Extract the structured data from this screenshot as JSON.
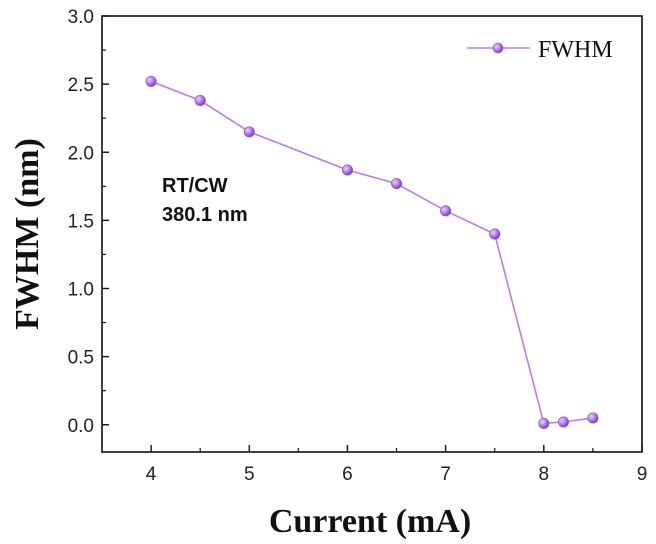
{
  "chart_data": {
    "type": "line",
    "xlabel": "Current (mA)",
    "ylabel": "FWHM (nm)",
    "xlim": [
      3.5,
      9
    ],
    "ylim": [
      -0.2,
      3.0
    ],
    "x_ticks": [
      4,
      5,
      6,
      7,
      8,
      9
    ],
    "y_ticks": [
      0.0,
      0.5,
      1.0,
      1.5,
      2.0,
      2.5,
      3.0
    ],
    "y_tick_labels": [
      "0.0",
      "0.5",
      "1.0",
      "1.5",
      "2.0",
      "2.5",
      "3.0"
    ],
    "x_tick_labels": [
      "4",
      "5",
      "6",
      "7",
      "8",
      "9"
    ],
    "annotation_lines": [
      "RT/CW",
      "380.1 nm"
    ],
    "legend_position": "top-right",
    "grid": false,
    "series": [
      {
        "name": "FWHM",
        "color": "#b77cf0",
        "x": [
          4.0,
          4.5,
          5.0,
          6.0,
          6.5,
          7.0,
          7.5,
          8.0,
          8.2,
          8.5
        ],
        "y": [
          2.52,
          2.38,
          2.15,
          1.87,
          1.77,
          1.57,
          1.4,
          0.01,
          0.02,
          0.05
        ]
      }
    ]
  }
}
